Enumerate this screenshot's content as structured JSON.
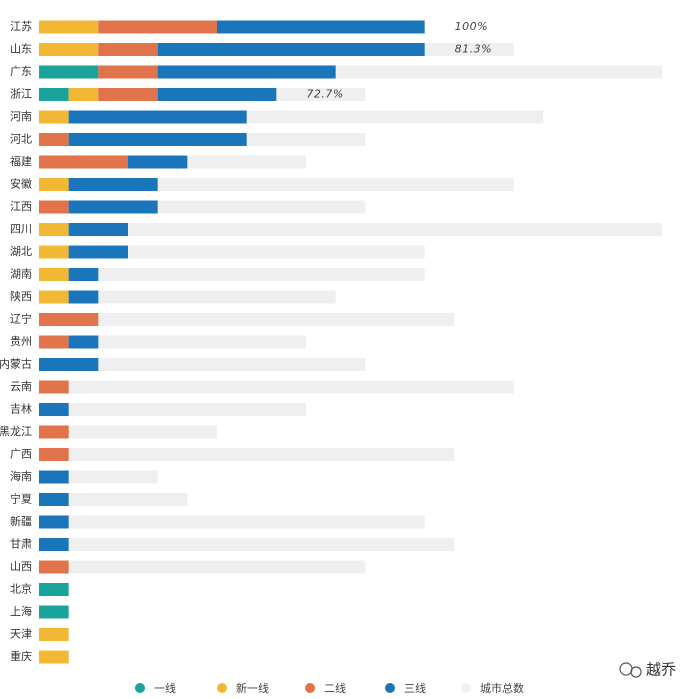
{
  "chart_data": {
    "type": "bar",
    "orientation": "horizontal",
    "stacked": true,
    "categories": [
      "江苏",
      "山东",
      "广东",
      "浙江",
      "河南",
      "河北",
      "福建",
      "安徽",
      "江西",
      "四川",
      "湖北",
      "湖南",
      "陕西",
      "辽宁",
      "贵州",
      "内蒙古",
      "云南",
      "吉林",
      "黑龙江",
      "广西",
      "海南",
      "宁夏",
      "新疆",
      "甘肃",
      "山西",
      "北京",
      "上海",
      "天津",
      "重庆"
    ],
    "series": [
      {
        "name": "一线",
        "color": "#1aa39a",
        "values": [
          0,
          0,
          2,
          1,
          0,
          0,
          0,
          0,
          0,
          0,
          0,
          0,
          0,
          0,
          0,
          0,
          0,
          0,
          0,
          0,
          0,
          0,
          0,
          0,
          0,
          1,
          1,
          0,
          0
        ]
      },
      {
        "name": "新一线",
        "color": "#f2b833",
        "values": [
          2,
          2,
          0,
          1,
          1,
          0,
          0,
          1,
          0,
          1,
          1,
          1,
          1,
          0,
          0,
          0,
          0,
          0,
          0,
          0,
          0,
          0,
          0,
          0,
          0,
          0,
          0,
          1,
          1
        ]
      },
      {
        "name": "二线",
        "color": "#e0734a",
        "values": [
          4,
          2,
          2,
          2,
          0,
          1,
          3,
          0,
          1,
          0,
          0,
          0,
          0,
          2,
          1,
          0,
          1,
          0,
          1,
          1,
          0,
          0,
          0,
          0,
          1,
          0,
          0,
          0,
          0
        ]
      },
      {
        "name": "三线",
        "color": "#1b75bb",
        "values": [
          7,
          9,
          6,
          4,
          6,
          6,
          2,
          3,
          3,
          2,
          2,
          1,
          1,
          0,
          1,
          2,
          0,
          1,
          0,
          0,
          1,
          1,
          1,
          1,
          0,
          0,
          0,
          0,
          0
        ]
      }
    ],
    "total": {
      "name": "城市总数",
      "color": "#efefef",
      "values": [
        13,
        16,
        21,
        11,
        17,
        11,
        9,
        16,
        11,
        21,
        13,
        13,
        10,
        14,
        9,
        11,
        16,
        9,
        6,
        14,
        4,
        5,
        13,
        14,
        11,
        1,
        1,
        1,
        1
      ]
    },
    "coverage_labels": [
      "100%",
      "81.3%",
      null,
      "72.7%",
      null,
      null,
      null,
      null,
      null,
      null,
      null,
      null,
      null,
      null,
      null,
      null,
      null,
      null,
      null,
      null,
      null,
      null,
      null,
      null,
      null,
      null,
      null,
      null,
      null
    ],
    "watermark": "越乔"
  }
}
